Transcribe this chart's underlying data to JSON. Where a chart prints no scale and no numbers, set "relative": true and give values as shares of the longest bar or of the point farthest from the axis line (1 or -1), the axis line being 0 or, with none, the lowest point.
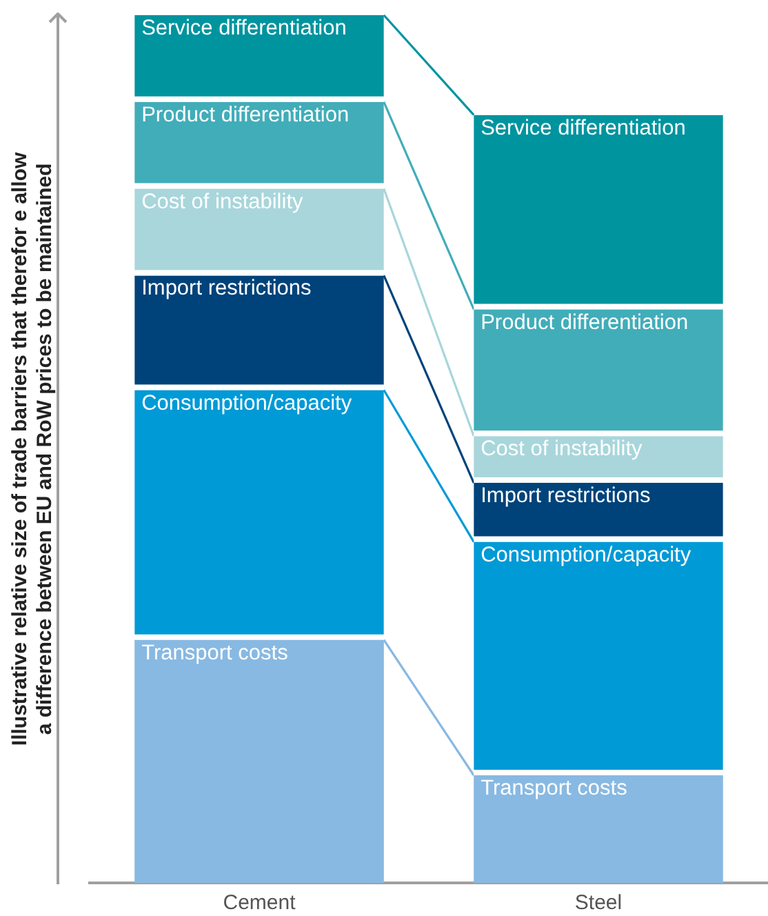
{
  "chart_data": {
    "type": "bar",
    "stacked": true,
    "relative": true,
    "legend": false,
    "grid": false,
    "ylabel": "Illustrative relative size of trade barriers that therefor e allow\na difference between EU and RoW prices to be maintained",
    "categories": [
      "Cement",
      "Steel"
    ],
    "series": [
      {
        "name": "Transport costs",
        "color": "#88b9e2",
        "values": [
          0.28,
          0.124
        ]
      },
      {
        "name": "Consumption/capacity",
        "color": "#009ad6",
        "values": [
          0.288,
          0.269
        ]
      },
      {
        "name": "Import restrictions",
        "color": "#00437a",
        "values": [
          0.132,
          0.068
        ]
      },
      {
        "name": "Cost of instability",
        "color": "#a8d6db",
        "values": [
          0.1,
          0.054
        ]
      },
      {
        "name": "Product differentiation",
        "color": "#41adb9",
        "values": [
          0.1,
          0.146
        ]
      },
      {
        "name": "Service differentiation",
        "color": "#00949f",
        "values": [
          0.1,
          0.224
        ]
      }
    ]
  }
}
